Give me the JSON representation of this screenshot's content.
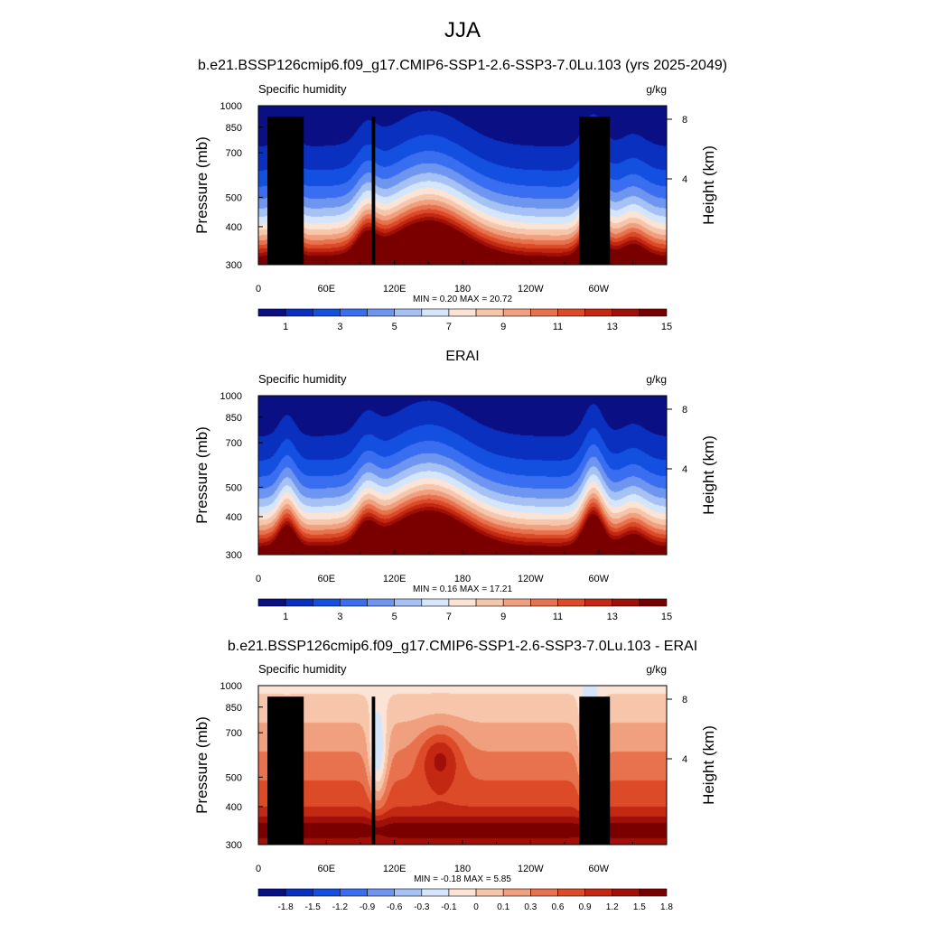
{
  "figure": {
    "title": "JJA",
    "case_title": "b.e21.BSSP126cmip6.f09_g17.CMIP6-SSP1-2.6-SSP3-7.0Lu.103 (yrs 2025-2049)",
    "obs_title": "ERAI",
    "diff_title": "b.e21.BSSP126cmip6.f09_g17.CMIP6-SSP1-2.6-SSP3-7.0Lu.103 - ERAI"
  },
  "chart_data": [
    {
      "type": "heatmap",
      "variable": "Specific humidity",
      "units": "g/kg",
      "ylabel": "Pressure (mb)",
      "ylabel_right": "Height (km)",
      "x_ticks": [
        "0",
        "60E",
        "120E",
        "180",
        "120W",
        "60W"
      ],
      "x_range_deg": [
        0,
        360
      ],
      "y_ticks": [
        300,
        400,
        500,
        700,
        850,
        1000
      ],
      "y_range": [
        1000,
        300
      ],
      "y_log": true,
      "height_ticks": [
        8,
        4
      ],
      "stats_text": "MIN =   0.20  MAX =  20.72",
      "min": 0.2,
      "max": 20.72,
      "colorbar_labels": [
        "1",
        "3",
        "5",
        "7",
        "9",
        "11",
        "13",
        "15"
      ],
      "colorbar_colors": [
        "#0a0f84",
        "#0a30c0",
        "#1450e0",
        "#3a6ef0",
        "#6e96f0",
        "#a6c2f4",
        "#d6e6fa",
        "#fbe4d6",
        "#f7c6aa",
        "#f0a07e",
        "#e8724e",
        "#dc4a28",
        "#c22812",
        "#a01008",
        "#7a0000"
      ],
      "surface_field": "humidity"
    },
    {
      "type": "heatmap",
      "variable": "Specific humidity",
      "units": "g/kg",
      "ylabel": "Pressure (mb)",
      "ylabel_right": "Height (km)",
      "x_ticks": [
        "0",
        "60E",
        "120E",
        "180",
        "120W",
        "60W"
      ],
      "x_range_deg": [
        0,
        360
      ],
      "y_ticks": [
        300,
        400,
        500,
        700,
        850,
        1000
      ],
      "y_range": [
        1000,
        300
      ],
      "y_log": true,
      "height_ticks": [
        8,
        4
      ],
      "stats_text": "MIN =   0.16  MAX =  17.21",
      "min": 0.16,
      "max": 17.21,
      "colorbar_labels": [
        "1",
        "3",
        "5",
        "7",
        "9",
        "11",
        "13",
        "15"
      ],
      "colorbar_colors": [
        "#0a0f84",
        "#0a30c0",
        "#1450e0",
        "#3a6ef0",
        "#6e96f0",
        "#a6c2f4",
        "#d6e6fa",
        "#fbe4d6",
        "#f7c6aa",
        "#f0a07e",
        "#e8724e",
        "#dc4a28",
        "#c22812",
        "#a01008",
        "#7a0000"
      ],
      "surface_field": "humidity"
    },
    {
      "type": "heatmap",
      "variable": "Specific humidity",
      "units": "g/kg",
      "ylabel": "Pressure (mb)",
      "ylabel_right": "Height (km)",
      "x_ticks": [
        "0",
        "60E",
        "120E",
        "180",
        "120W",
        "60W"
      ],
      "x_range_deg": [
        0,
        360
      ],
      "y_ticks": [
        300,
        400,
        500,
        700,
        850,
        1000
      ],
      "y_range": [
        1000,
        300
      ],
      "y_log": true,
      "height_ticks": [
        8,
        4
      ],
      "stats_text": "MIN =  -0.18  MAX =   5.85",
      "min": -0.18,
      "max": 5.85,
      "colorbar_labels": [
        "-1.8",
        "-1.5",
        "-1.2",
        "-0.9",
        "-0.6",
        "-0.3",
        "-0.1",
        "0",
        "0.1",
        "0.3",
        "0.6",
        "0.9",
        "1.2",
        "1.5",
        "1.8"
      ],
      "colorbar_colors": [
        "#0a0f84",
        "#0a30c0",
        "#1450e0",
        "#3a6ef0",
        "#6e96f0",
        "#a6c2f4",
        "#d6e6fa",
        "#fbe4d6",
        "#f7c6aa",
        "#f0a07e",
        "#e8724e",
        "#dc4a28",
        "#c22812",
        "#a01008",
        "#7a0000"
      ],
      "surface_field": "difference"
    }
  ],
  "terrain_blocks_deg": [
    {
      "lon": [
        8,
        40
      ],
      "p_top": 920
    },
    {
      "lon": [
        27,
        35
      ],
      "p_top": 850
    },
    {
      "lon": [
        100,
        103
      ],
      "p_top": 920
    },
    {
      "lon": [
        283,
        310
      ],
      "p_top": 920
    }
  ]
}
